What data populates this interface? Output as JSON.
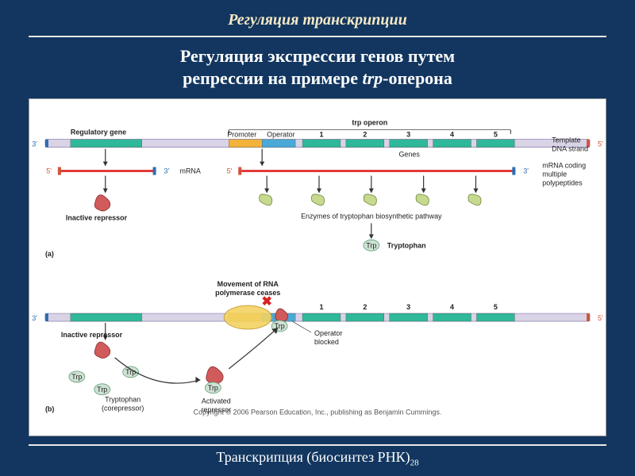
{
  "style": {
    "slide_bg": "#12365f",
    "rule_color": "#e8e8e8",
    "header_color": "#f7e9c5",
    "title_color": "#ffffff",
    "footer_color": "#ffffff",
    "header_fontsize": 20,
    "title_fontsize": 22
  },
  "header": "Регуляция транскрипции",
  "title_line1": "Регуляция экспрессии генов путем",
  "title_line2_a": "репрессии на примере ",
  "title_line2_b": "trp",
  "title_line2_c": "-оперона",
  "footer_text": "Транскрипция (биосинтез РНК)",
  "page_number": "28",
  "figure": {
    "colors": {
      "dna_body": "#d9d3e6",
      "dna_border": "#8a7fb0",
      "reg_gene": "#2fb89a",
      "promoter": "#f3b23a",
      "operator": "#4aa9d6",
      "gene": "#2fb89a",
      "mrna": "#e23b3b",
      "repressor": "#d15a5a",
      "enzyme_fill": "#c7d98e",
      "enzyme_border": "#6b8a3a",
      "trp_fill": "#cfe2d4",
      "trp_border": "#5a9c73",
      "polymerase_fill": "#f3d362",
      "polymerase_border": "#c79a2e",
      "arrow": "#333333",
      "tick3": "#2b6fb0",
      "tick5": "#d1553b",
      "label": "#222222",
      "x_red": "#d62221",
      "copyright": "#555555"
    },
    "labels": {
      "regulatory_gene": "Regulatory gene",
      "trp_operon": "trp operon",
      "promoter": "Promoter",
      "operator": "Operator",
      "genes": "Genes",
      "template": "Template\nDNA strand",
      "mrna": "mRNA",
      "mrna_coding": "mRNA coding\nmultiple\npolypeptides",
      "inactive_repressor": "Inactive repressor",
      "enzymes": "Enzymes of tryptophan biosynthetic pathway",
      "tryptophan": "Tryptophan",
      "trp": "Trp",
      "movement": "Movement of RNA\npolymerase ceases",
      "operator_blocked": "Operator\nblocked",
      "tryptophan_corep": "Tryptophan\n(corepressor)",
      "activated_repressor": "Activated\nrepressor",
      "three": "3'",
      "five": "5'",
      "a": "(a)",
      "b": "(b)",
      "gene_nums": [
        "1",
        "2",
        "3",
        "4",
        "5"
      ],
      "copyright": "Copyright © 2006 Pearson Education, Inc., publishing as Benjamin Cummings."
    }
  }
}
